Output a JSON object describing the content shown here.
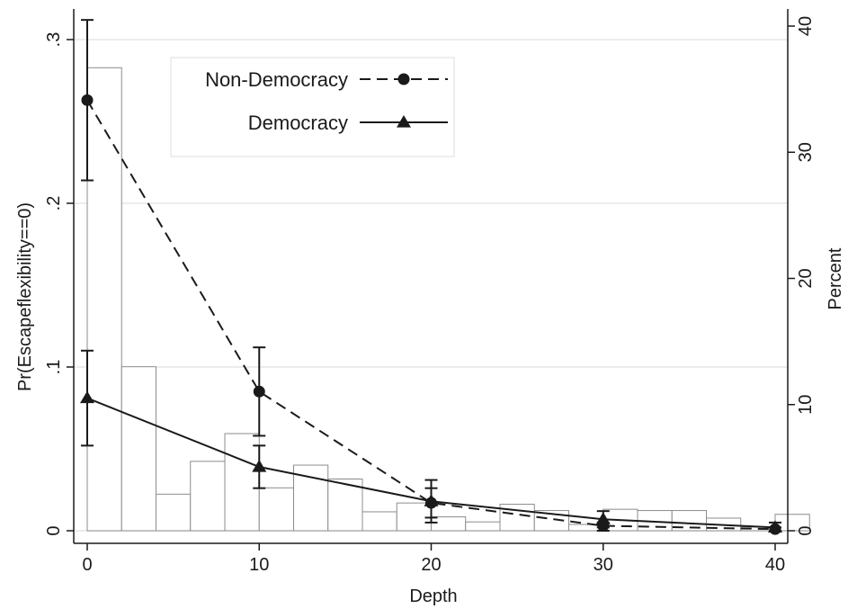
{
  "chart_data": {
    "type": "line",
    "xlabel": "Depth",
    "ylabel_left": "Pr(Escapeflexibility==0)",
    "ylabel_right": "Percent",
    "xlim": [
      0,
      40
    ],
    "ylim_left": [
      0,
      0.3
    ],
    "ylim_right": [
      0,
      40
    ],
    "x_ticks": [
      "0",
      "10",
      "20",
      "30",
      "40"
    ],
    "y_left_ticks": [
      "0",
      ".1",
      ".2",
      ".3"
    ],
    "y_right_ticks": [
      "0",
      "10",
      "20",
      "30",
      "40"
    ],
    "grid": true,
    "legend_position": "top-left",
    "legend": [
      {
        "label": "Non-Democracy",
        "style": "dashed",
        "marker": "circle"
      },
      {
        "label": "Democracy",
        "style": "solid",
        "marker": "triangle"
      }
    ],
    "series": [
      {
        "name": "Non-Democracy",
        "x": [
          0,
          10,
          20,
          30,
          40
        ],
        "y": [
          0.263,
          0.085,
          0.017,
          0.003,
          0.001
        ],
        "ci_low": [
          0.214,
          0.058,
          0.008,
          0.0,
          0.0
        ],
        "ci_high": [
          0.312,
          0.112,
          0.026,
          0.005,
          0.002
        ]
      },
      {
        "name": "Democracy",
        "x": [
          0,
          10,
          20,
          30,
          40
        ],
        "y": [
          0.081,
          0.039,
          0.018,
          0.007,
          0.002
        ],
        "ci_low": [
          0.052,
          0.026,
          0.005,
          0.002,
          0.0
        ],
        "ci_high": [
          0.11,
          0.052,
          0.031,
          0.012,
          0.005
        ]
      }
    ],
    "histogram": {
      "axis": "right",
      "bin_width": 2,
      "bin_starts": [
        0,
        2,
        4,
        6,
        8,
        10,
        12,
        14,
        16,
        18,
        20,
        22,
        24,
        26,
        28,
        30,
        32,
        34,
        36,
        38,
        40
      ],
      "percent": [
        36.7,
        13.0,
        2.9,
        5.5,
        7.7,
        3.4,
        5.2,
        4.1,
        1.5,
        2.2,
        1.1,
        0.7,
        2.1,
        1.6,
        0.5,
        1.7,
        1.6,
        1.6,
        1.0,
        0.3,
        1.3
      ]
    }
  }
}
